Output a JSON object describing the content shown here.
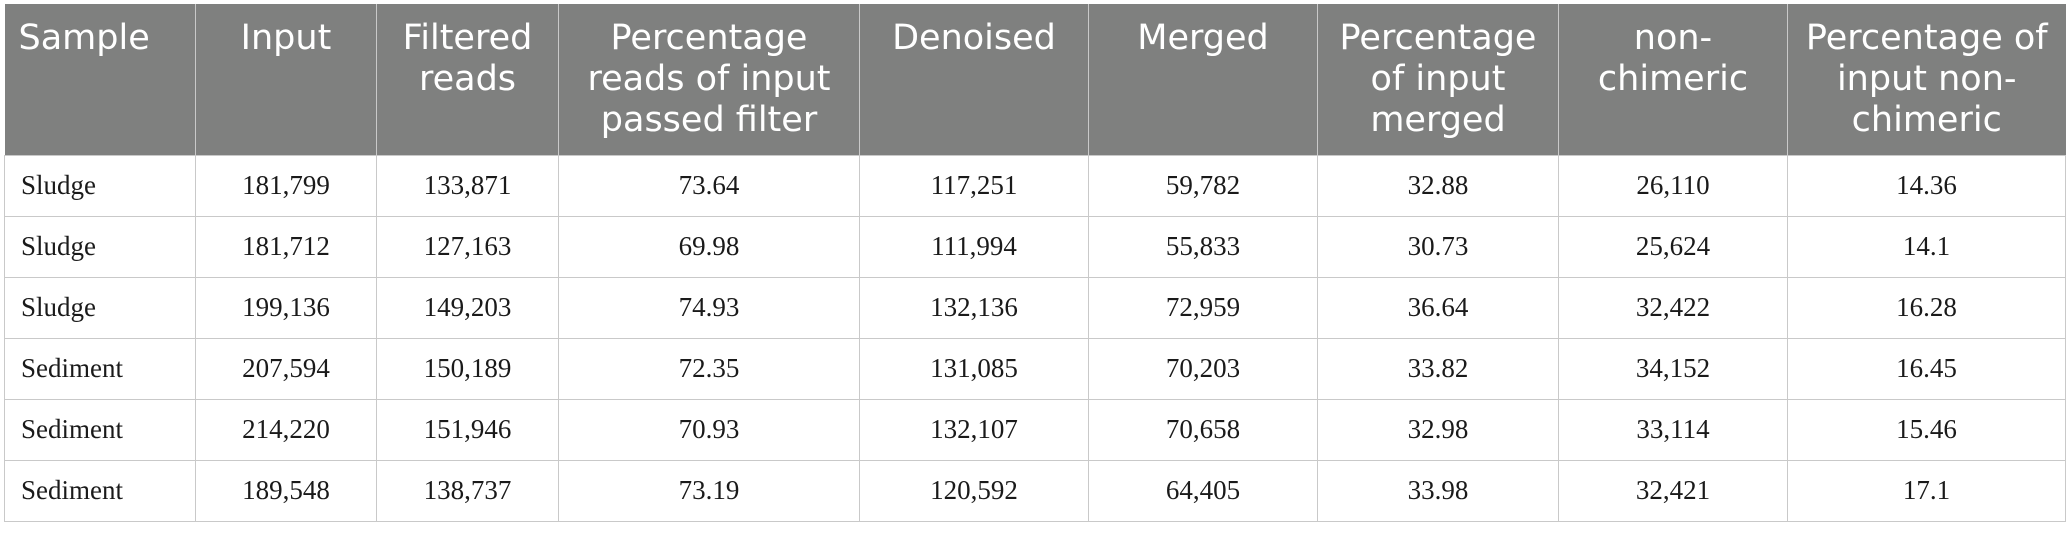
{
  "table": {
    "headers": [
      "Sample",
      "Input",
      "Filtered reads",
      "Percentage reads of input passed filter",
      "Denoised",
      "Merged",
      "Percentage of input merged",
      "non-chimeric",
      "Percentage of input non-chimeric"
    ],
    "rows": [
      [
        "Sludge",
        "181,799",
        "133,871",
        "73.64",
        "117,251",
        "59,782",
        "32.88",
        "26,110",
        "14.36"
      ],
      [
        "Sludge",
        "181,712",
        "127,163",
        "69.98",
        "111,994",
        "55,833",
        "30.73",
        "25,624",
        "14.1"
      ],
      [
        "Sludge",
        "199,136",
        "149,203",
        "74.93",
        "132,136",
        "72,959",
        "36.64",
        "32,422",
        "16.28"
      ],
      [
        "Sediment",
        "207,594",
        "150,189",
        "72.35",
        "131,085",
        "70,203",
        "33.82",
        "34,152",
        "16.45"
      ],
      [
        "Sediment",
        "214,220",
        "151,946",
        "70.93",
        "132,107",
        "70,658",
        "32.98",
        "33,114",
        "15.46"
      ],
      [
        "Sediment",
        "189,548",
        "138,737",
        "73.19",
        "120,592",
        "64,405",
        "33.98",
        "32,421",
        "17.1"
      ]
    ]
  },
  "colors": {
    "header_bg": "#7f807f",
    "header_text": "#ffffff",
    "grid_line": "#c9c9c9",
    "cell_text": "#1a1a1a"
  }
}
